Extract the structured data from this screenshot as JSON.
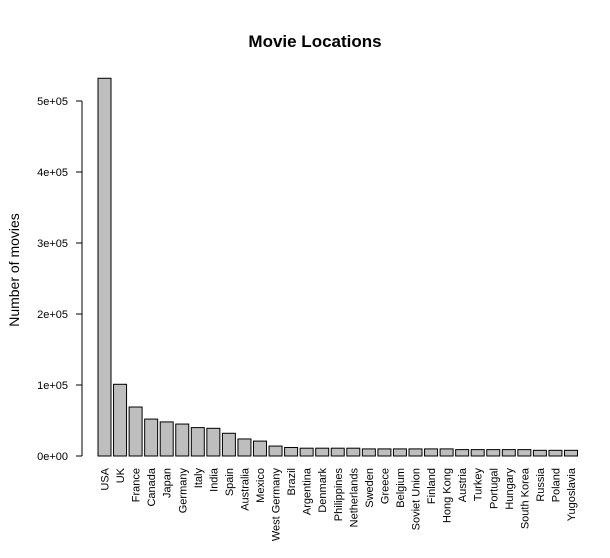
{
  "chart_data": {
    "type": "bar",
    "title": "Movie Locations",
    "xlabel": "",
    "ylabel": "Number of movies",
    "ylim": [
      0,
      500000
    ],
    "yticks": [
      0,
      100000,
      200000,
      300000,
      400000,
      500000
    ],
    "ytick_labels": [
      "0e+00",
      "1e+05",
      "2e+05",
      "3e+05",
      "4e+05",
      "5e+05"
    ],
    "bar_color": "#bebebe",
    "categories": [
      "USA",
      "UK",
      "France",
      "Canada",
      "Japan",
      "Germany",
      "Italy",
      "India",
      "Spain",
      "Australia",
      "Mexico",
      "West Germany",
      "Brazil",
      "Argentina",
      "Denmark",
      "Philippines",
      "Netherlands",
      "Sweden",
      "Greece",
      "Belgium",
      "Soviet Union",
      "Finland",
      "Hong Kong",
      "Austria",
      "Turkey",
      "Portugal",
      "Hungary",
      "South Korea",
      "Russia",
      "Poland",
      "Yugoslavia"
    ],
    "values": [
      532000,
      101000,
      69000,
      52000,
      48000,
      45000,
      40000,
      39000,
      32000,
      24000,
      21000,
      14000,
      12000,
      11000,
      11000,
      11000,
      11000,
      10000,
      10000,
      10000,
      10000,
      10000,
      10000,
      9000,
      9000,
      9000,
      9000,
      9000,
      8000,
      8000,
      8000
    ]
  }
}
